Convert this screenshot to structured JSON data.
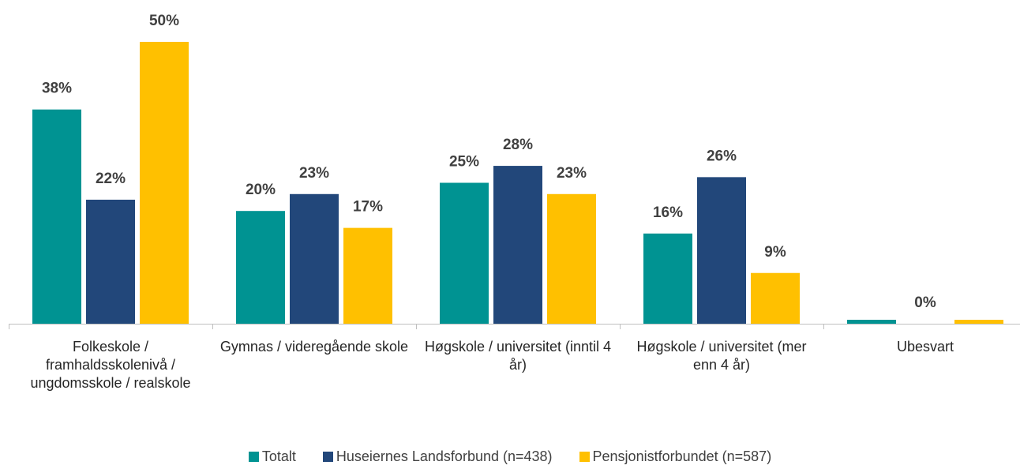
{
  "chart_data": {
    "type": "bar",
    "categories": [
      "Folkeskole / framhaldsskolenivå / ungdomsskole / realskole",
      "Gymnas / videregående skole",
      "Høgskole / universitet (inntil 4 år)",
      "Høgskole / universitet (mer enn 4 år)",
      "Ubesvart"
    ],
    "series": [
      {
        "name": "Totalt",
        "color": "#009392",
        "values": [
          38,
          20,
          25,
          16,
          0.7
        ],
        "value_labels": [
          "38%",
          "20%",
          "25%",
          "16%",
          null
        ]
      },
      {
        "name": "Huseiernes Landsforbund (n=438)",
        "color": "#22477a",
        "values": [
          22,
          23,
          28,
          26,
          0
        ],
        "value_labels": [
          "22%",
          "23%",
          "28%",
          "26%",
          "0%"
        ]
      },
      {
        "name": "Pensjonistforbundet (n=587)",
        "color": "#ffc000",
        "values": [
          50,
          17,
          23,
          9,
          0.7
        ],
        "value_labels": [
          "50%",
          "17%",
          "23%",
          "9%",
          null
        ]
      }
    ],
    "ylim": [
      0,
      50
    ],
    "legend": "bottom"
  }
}
